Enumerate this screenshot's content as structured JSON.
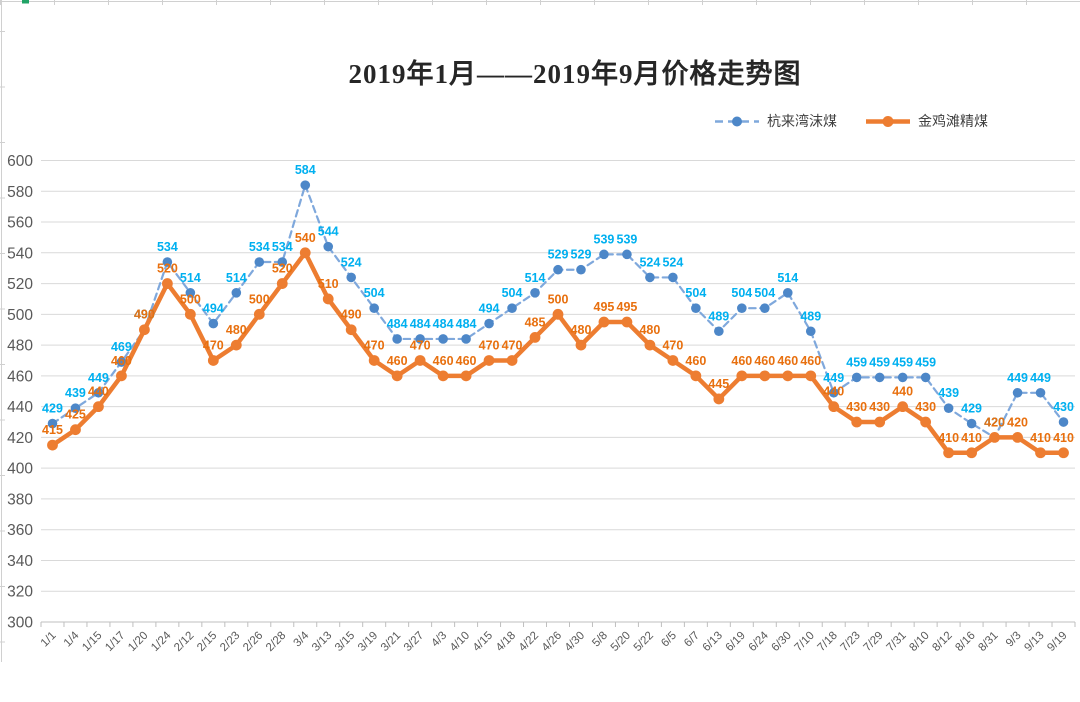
{
  "title": "2019年1月——2019年9月价格走势图",
  "chart_data": {
    "type": "line",
    "title": "2019年1月——2019年9月价格走势图",
    "categories": [
      "1/1",
      "1/4",
      "1/15",
      "1/17",
      "1/20",
      "1/24",
      "2/12",
      "2/15",
      "2/23",
      "2/26",
      "2/28",
      "3/4",
      "3/13",
      "3/15",
      "3/19",
      "3/21",
      "3/27",
      "4/3",
      "4/10",
      "4/15",
      "4/18",
      "4/22",
      "4/26",
      "4/30",
      "5/8",
      "5/20",
      "5/22",
      "6/5",
      "6/7",
      "6/13",
      "6/19",
      "6/24",
      "6/30",
      "7/10",
      "7/18",
      "7/23",
      "7/29",
      "7/31",
      "8/10",
      "8/12",
      "8/16",
      "8/31",
      "9/3",
      "9/13",
      "9/19"
    ],
    "series": [
      {
        "name": "杭来湾沫煤",
        "values": [
          429,
          439,
          449,
          469,
          490,
          534,
          514,
          494,
          514,
          534,
          534,
          584,
          544,
          524,
          504,
          484,
          484,
          484,
          484,
          494,
          504,
          514,
          529,
          529,
          539,
          539,
          524,
          524,
          504,
          489,
          504,
          504,
          514,
          489,
          449,
          459,
          459,
          459,
          459,
          439,
          429,
          420,
          449,
          449,
          430
        ],
        "line_color": "#7FA8DC",
        "marker_color": "#4D87C8",
        "label_color": "#00B0F0",
        "dashed": true
      },
      {
        "name": "金鸡滩精煤",
        "values": [
          415,
          425,
          440,
          460,
          490,
          520,
          500,
          470,
          480,
          500,
          520,
          540,
          510,
          490,
          470,
          460,
          470,
          460,
          460,
          470,
          470,
          485,
          500,
          480,
          495,
          495,
          480,
          470,
          460,
          445,
          460,
          460,
          460,
          460,
          440,
          430,
          430,
          440,
          430,
          410,
          410,
          420,
          420,
          410,
          410
        ],
        "line_color": "#ED7D31",
        "marker_color": "#ED7D31",
        "label_color": "#E8700F",
        "dashed": false
      }
    ],
    "ylim": [
      300,
      600
    ],
    "ytick_step": 20,
    "xlabel": "",
    "ylabel": "",
    "grid": true,
    "legend_position": "top-right",
    "data_labels": true
  },
  "colors": {
    "grid": "#D9D9D9",
    "axis": "#BFBFBF",
    "tick_text": "#595959",
    "sheet_edge": "#D0D0D0",
    "sheet_accent": "#21A366",
    "background": "#FFFFFF"
  }
}
